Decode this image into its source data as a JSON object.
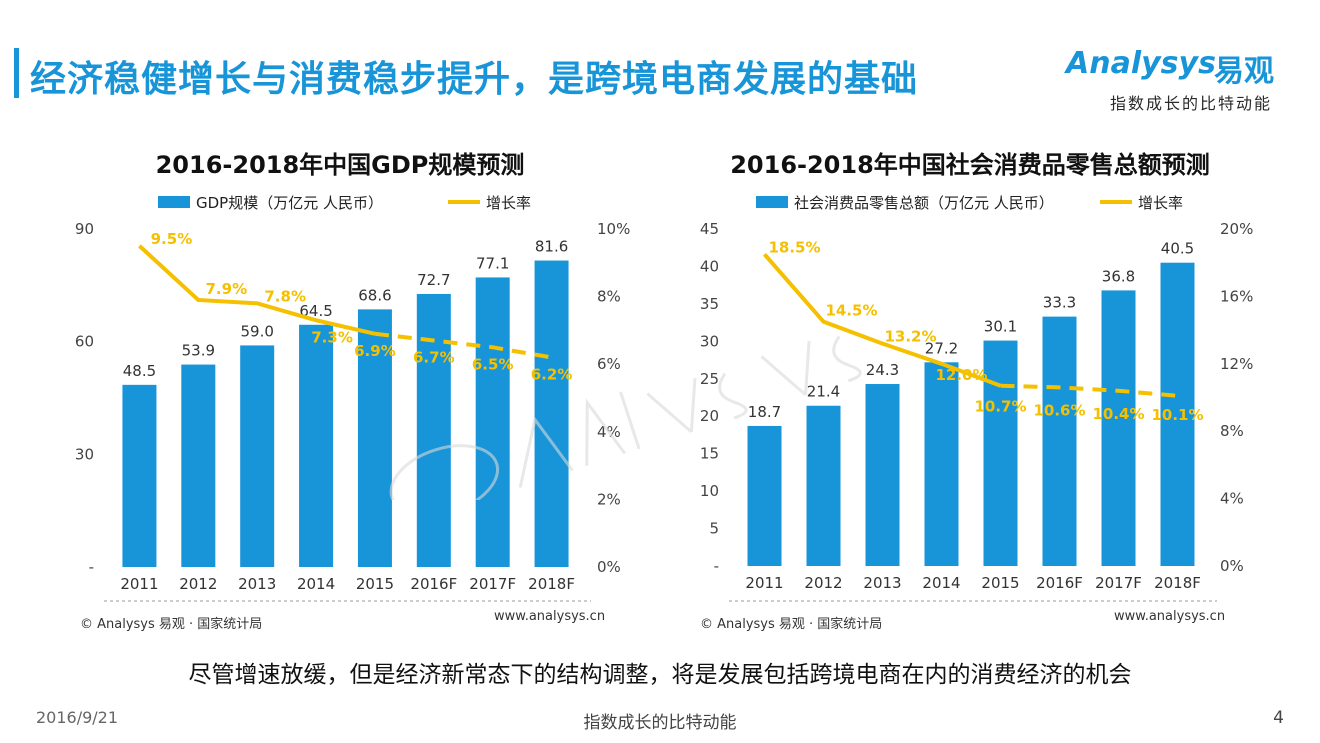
{
  "header": {
    "title": "经济稳健增长与消费稳步提升，是跨境电商发展的基础",
    "logo_en": "Analysys",
    "logo_cn": "易观",
    "logo_tagline": "指数成长的比特动能"
  },
  "colors": {
    "bar": "#1795d8",
    "line": "#f5c000",
    "title": "#1795d8"
  },
  "chart_data": [
    {
      "type": "bar",
      "title": "2016-2018年中国GDP规模预测",
      "legend_bar": "GDP规模（万亿元 人民币）",
      "legend_line": "增长率",
      "categories": [
        "2011",
        "2012",
        "2013",
        "2014",
        "2015",
        "2016F",
        "2017F",
        "2018F"
      ],
      "values": [
        48.5,
        53.9,
        59.0,
        64.5,
        68.6,
        72.7,
        77.1,
        81.6
      ],
      "value_labels": [
        "48.5",
        "53.9",
        "59.0",
        "64.5",
        "68.6",
        "72.7",
        "77.1",
        "81.6"
      ],
      "growth": [
        9.5,
        7.9,
        7.8,
        7.3,
        6.9,
        6.7,
        6.5,
        6.2
      ],
      "growth_labels": [
        "9.5%",
        "7.9%",
        "7.8%",
        "7.3%",
        "6.9%",
        "6.7%",
        "6.5%",
        "6.2%"
      ],
      "y_ticks": [
        "-",
        "30",
        "60",
        "90"
      ],
      "ylim": [
        0,
        90
      ],
      "y2_ticks": [
        "0%",
        "2%",
        "4%",
        "6%",
        "8%",
        "10%"
      ],
      "y2lim": [
        0,
        10
      ],
      "source": "© Analysys 易观 · 国家统计局",
      "url": "www.analysys.cn"
    },
    {
      "type": "bar",
      "title": "2016-2018年中国社会消费品零售总额预测",
      "legend_bar": "社会消费品零售总额（万亿元 人民币）",
      "legend_line": "增长率",
      "categories": [
        "2011",
        "2012",
        "2013",
        "2014",
        "2015",
        "2016F",
        "2017F",
        "2018F"
      ],
      "values": [
        18.7,
        21.4,
        24.3,
        27.2,
        30.1,
        33.3,
        36.8,
        40.5
      ],
      "value_labels": [
        "18.7",
        "21.4",
        "24.3",
        "27.2",
        "30.1",
        "33.3",
        "36.8",
        "40.5"
      ],
      "growth": [
        18.5,
        14.5,
        13.2,
        12.0,
        10.7,
        10.6,
        10.4,
        10.1
      ],
      "growth_labels": [
        "18.5%",
        "14.5%",
        "13.2%",
        "12.0%",
        "10.7%",
        "10.6%",
        "10.4%",
        "10.1%"
      ],
      "y_ticks": [
        "-",
        "5",
        "10",
        "15",
        "20",
        "25",
        "30",
        "35",
        "40",
        "45"
      ],
      "ylim": [
        0,
        45
      ],
      "y2_ticks": [
        "0%",
        "4%",
        "8%",
        "12%",
        "16%",
        "20%"
      ],
      "y2lim": [
        0,
        20
      ],
      "source": "© Analysys 易观 · 国家统计局",
      "url": "www.analysys.cn"
    }
  ],
  "caption": "尽管增速放缓，但是经济新常态下的结构调整，将是发展包括跨境电商在内的消费经济的机会",
  "footer": {
    "date": "2016/9/21",
    "center": "指数成长的比特动能",
    "page": "4"
  }
}
